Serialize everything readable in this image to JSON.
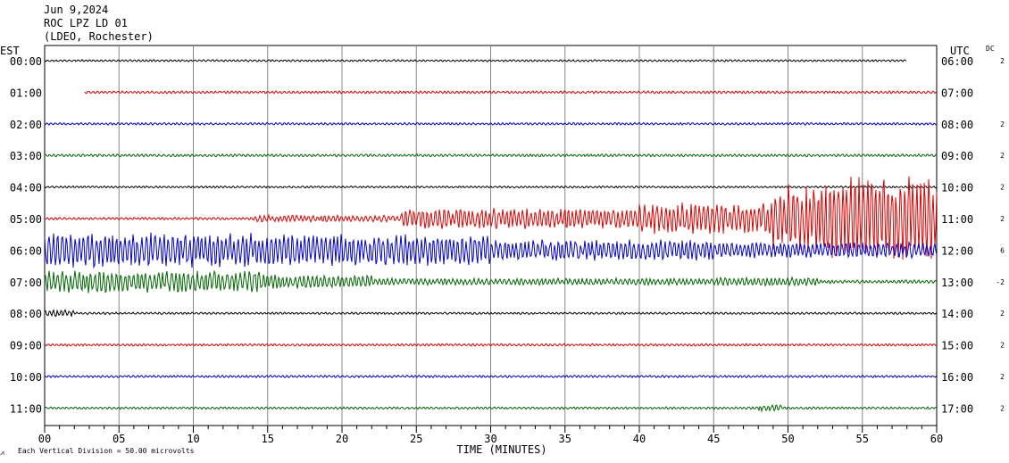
{
  "header": {
    "date": "Jun 9,2024",
    "station": "ROC LPZ LD 01",
    "network": "(LDEO, Rochester)"
  },
  "left_axis_title": "EST",
  "right_axis_title": "UTC",
  "dc_title": "DC",
  "footer": {
    "scale_note": "Each Vertical Division =   50.00 microvolts",
    "xlabel": "TIME (MINUTES)"
  },
  "colors": {
    "black": "#000000",
    "red": "#dd0000",
    "blue": "#0000cc",
    "green": "#006600",
    "grid": "#888888"
  },
  "chart_data": {
    "type": "line",
    "title": "ROC LPZ LD 01",
    "xlabel": "TIME (MINUTES)",
    "ylabel": "",
    "xlim": [
      0,
      60
    ],
    "xticks": [
      "00",
      "05",
      "10",
      "15",
      "20",
      "25",
      "30",
      "35",
      "40",
      "45",
      "50",
      "55",
      "60"
    ],
    "grid": true,
    "series": [
      {
        "left": "00:00",
        "right": "06:00",
        "dc": "2",
        "color": "black",
        "start": 0,
        "end": 58,
        "amp": 1.2,
        "events": []
      },
      {
        "left": "01:00",
        "right": "07:00",
        "dc": "",
        "color": "red",
        "start": 2.7,
        "end": 60,
        "amp": 1.5,
        "events": []
      },
      {
        "left": "02:00",
        "right": "08:00",
        "dc": "2",
        "color": "blue",
        "start": 0,
        "end": 60,
        "amp": 1.4,
        "events": []
      },
      {
        "left": "03:00",
        "right": "09:00",
        "dc": "2",
        "color": "green",
        "start": 0,
        "end": 60,
        "amp": 1.6,
        "events": []
      },
      {
        "left": "04:00",
        "right": "10:00",
        "dc": "2",
        "color": "black",
        "start": 0,
        "end": 60,
        "amp": 1.2,
        "events": []
      },
      {
        "left": "05:00",
        "right": "11:00",
        "dc": "2",
        "color": "red",
        "start": 0,
        "end": 60,
        "amp": 1.5,
        "events": [
          [
            14,
            24,
            4
          ],
          [
            24,
            40,
            12
          ],
          [
            40,
            49,
            18
          ],
          [
            49,
            52,
            40
          ],
          [
            52,
            60,
            48
          ]
        ]
      },
      {
        "left": "06:00",
        "right": "12:00",
        "dc": "6",
        "color": "blue",
        "start": 0,
        "end": 60,
        "amp": 2,
        "events": [
          [
            0,
            14,
            20
          ],
          [
            14,
            30,
            18
          ],
          [
            30,
            45,
            12
          ],
          [
            45,
            60,
            9
          ]
        ]
      },
      {
        "left": "07:00",
        "right": "13:00",
        "dc": "-2",
        "color": "green",
        "start": 0,
        "end": 60,
        "amp": 2,
        "events": [
          [
            0,
            15,
            13
          ],
          [
            15,
            22,
            8
          ],
          [
            22,
            45,
            4
          ],
          [
            45,
            52,
            5
          ]
        ]
      },
      {
        "left": "08:00",
        "right": "14:00",
        "dc": "2",
        "color": "black",
        "start": 0,
        "end": 60,
        "amp": 1.3,
        "events": [
          [
            0,
            2,
            4
          ]
        ]
      },
      {
        "left": "09:00",
        "right": "15:00",
        "dc": "2",
        "color": "red",
        "start": 0,
        "end": 60,
        "amp": 1.4,
        "events": []
      },
      {
        "left": "10:00",
        "right": "16:00",
        "dc": "2",
        "color": "blue",
        "start": 0,
        "end": 60,
        "amp": 1.4,
        "events": []
      },
      {
        "left": "11:00",
        "right": "17:00",
        "dc": "2",
        "color": "green",
        "start": 0,
        "end": 60,
        "amp": 1.4,
        "events": [
          [
            48,
            49.6,
            4
          ]
        ]
      }
    ]
  }
}
